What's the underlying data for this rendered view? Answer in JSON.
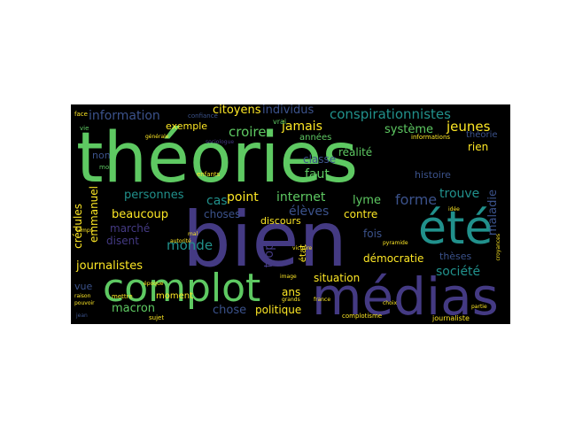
{
  "figure": {
    "kind": "word-cloud",
    "background": "#000000",
    "palette": [
      "#440154",
      "#3b528b",
      "#21918c",
      "#5ec962",
      "#fde725"
    ]
  },
  "words": {
    "theories": "théories",
    "bien": "bien",
    "ete": "été",
    "complot": "complot",
    "medias": "médias",
    "conspirationnistes": "conspirationnistes",
    "information": "information",
    "citoyens": "citoyens",
    "individus": "individus",
    "exemple": "exemple",
    "croire": "croire",
    "jamais": "jamais",
    "systeme": "système",
    "jeunes": "jeunes",
    "rien": "rien",
    "non": "non",
    "annees": "années",
    "realite": "réalité",
    "classe": "classe",
    "faut": "faut",
    "personnes": "personnes",
    "point": "point",
    "internet": "internet",
    "cas": "cas",
    "lyme": "lyme",
    "forme": "forme",
    "trouve": "trouve",
    "maladie": "maladie",
    "emmanuel": "emmanuel",
    "credules": "crédules",
    "beaucoup": "beaucoup",
    "choses": "choses",
    "eleves": "élèves",
    "contre": "contre",
    "marche": "marché",
    "disent": "disent",
    "discours": "discours",
    "fois": "fois",
    "monde": "monde",
    "trop": "trop",
    "democratie": "démocratie",
    "theses": "thèses",
    "journalistes": "journalistes",
    "societe": "société",
    "macron": "macron",
    "chose": "chose",
    "politique": "politique",
    "situation": "situation",
    "ans": "ans",
    "moment": "moment",
    "vue": "vue",
    "etat": "état",
    "histoire": "histoire",
    "theorie": "théorie",
    "informations": "informations",
    "journaliste": "journaliste",
    "complotisme": "complotisme",
    "face": "face",
    "vrai": "vrai",
    "sujet": "sujet",
    "france": "france",
    "idee": "idée",
    "image": "image",
    "victoire": "victoire",
    "pyramide": "pyramide",
    "autorite": "autorité",
    "croyances": "croyances",
    "vie": "vie",
    "raison": "raison",
    "pouvoir": "pouvoir",
    "confiance": "confiance",
    "enfants": "enfants",
    "mettre": "mettre",
    "epoque": "époque",
    "temps": "temps",
    "grands": "grands",
    "mal": "mal",
    "partie": "partie",
    "choix": "choix",
    "jean": "jean",
    "generale": "générale",
    "sociologue": "sociologue",
    "mois": "mois"
  }
}
